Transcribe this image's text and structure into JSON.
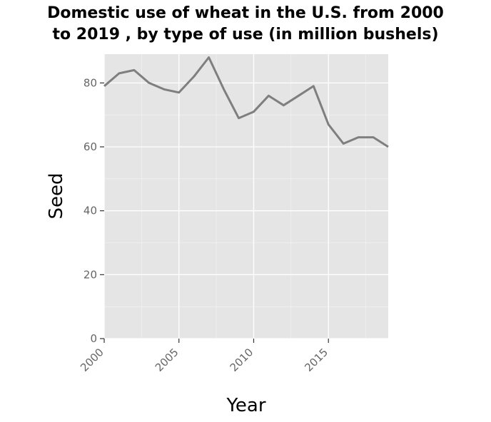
{
  "chart_data": {
    "type": "line",
    "title_line1": "Domestic use of wheat in the U.S. from 2000",
    "title_line2": "to 2019 , by type of use (in million bushels)",
    "xlabel": "Year",
    "ylabel": "Seed",
    "xlim": [
      2000,
      2019
    ],
    "ylim": [
      0,
      89
    ],
    "x_ticks": [
      2000,
      2005,
      2010,
      2015
    ],
    "y_ticks": [
      0,
      20,
      40,
      60,
      80
    ],
    "grid": true,
    "series": [
      {
        "x": [
          2000,
          2001,
          2002,
          2003,
          2004,
          2005,
          2006,
          2007,
          2008,
          2009,
          2010,
          2011,
          2012,
          2013,
          2014,
          2015,
          2016,
          2017,
          2018,
          2019
        ],
        "values": [
          79,
          83,
          84,
          80,
          78,
          77,
          82,
          88,
          78,
          69,
          71,
          76,
          73,
          76,
          79,
          67,
          61,
          63,
          63,
          60
        ],
        "color": "#7f7f7f"
      }
    ],
    "background_color": "#e5e5e5",
    "grid_color": "#ffffff"
  }
}
